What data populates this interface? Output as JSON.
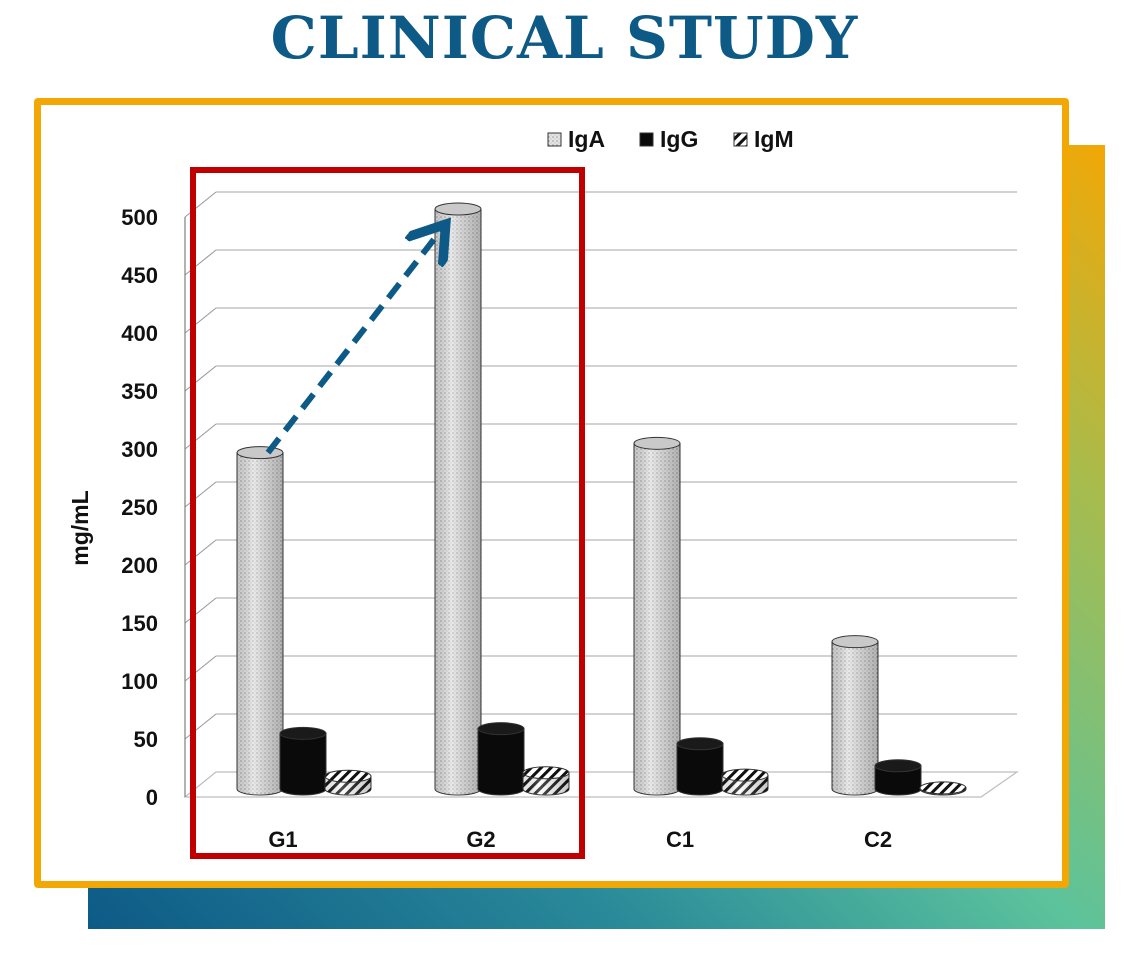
{
  "page": {
    "title": "CLINICAL STUDY"
  },
  "colors": {
    "title": "#0d5a87",
    "frame": "#f2a705",
    "highlight": "#c00000",
    "arrow": "#0d5a87",
    "gradient": [
      "#0d5a87",
      "#2a8a99",
      "#5cc39c",
      "#a7bc4e",
      "#f2a705"
    ]
  },
  "chart_data": {
    "type": "bar",
    "style": "3d-cylinder",
    "title": "",
    "xlabel": "",
    "ylabel": "mg/mL",
    "ylim": [
      0,
      500
    ],
    "yticks": [
      0,
      50,
      100,
      150,
      200,
      250,
      300,
      350,
      400,
      450,
      500
    ],
    "grid": true,
    "legend_position": "top",
    "categories": [
      "G1",
      "G2",
      "C1",
      "C2"
    ],
    "series": [
      {
        "name": "IgA",
        "pattern": "dotted",
        "values": [
          290,
          500,
          298,
          127
        ]
      },
      {
        "name": "IgG",
        "pattern": "solid",
        "values": [
          48,
          52,
          39,
          20
        ]
      },
      {
        "name": "IgM",
        "pattern": "hatched",
        "values": [
          11,
          14,
          12,
          1
        ]
      }
    ],
    "annotations": [
      {
        "type": "highlight-box",
        "covers": [
          "G1",
          "G2"
        ]
      },
      {
        "type": "dashed-arrow",
        "from": "G1",
        "to": "G2",
        "series": "IgA"
      }
    ]
  }
}
